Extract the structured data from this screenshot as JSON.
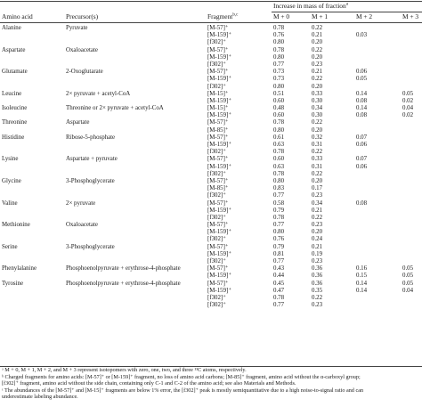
{
  "header": {
    "amino_acid": "Amino acid",
    "precursor": "Precursor(s)",
    "fragment": "Fragment",
    "fragment_sup": "b,c",
    "increase": "Increase in mass of fraction",
    "increase_sup": "a",
    "m0": "M + 0",
    "m1": "M + 1",
    "m2": "M + 2",
    "m3": "M + 3"
  },
  "rows": [
    {
      "aa": "Alanine",
      "pre": "Pyruvate",
      "frag": "[M-57]⁺",
      "m0": "0.78",
      "m1": "0.22",
      "m2": "",
      "m3": ""
    },
    {
      "aa": "",
      "pre": "",
      "frag": "[M-159]⁺",
      "m0": "0.76",
      "m1": "0.21",
      "m2": "0.03",
      "m3": ""
    },
    {
      "aa": "",
      "pre": "",
      "frag": "[f302]⁺",
      "m0": "0.80",
      "m1": "0.20",
      "m2": "",
      "m3": ""
    },
    {
      "aa": "Aspartate",
      "pre": "Oxaloacetate",
      "frag": "[M-57]⁺",
      "m0": "0.78",
      "m1": "0.22",
      "m2": "",
      "m3": ""
    },
    {
      "aa": "",
      "pre": "",
      "frag": "[M-159]⁺",
      "m0": "0.80",
      "m1": "0.20",
      "m2": "",
      "m3": ""
    },
    {
      "aa": "",
      "pre": "",
      "frag": "[f302]⁺",
      "m0": "0.77",
      "m1": "0.23",
      "m2": "",
      "m3": ""
    },
    {
      "aa": "Glutamate",
      "pre": "2-Oxoglutarate",
      "frag": "[M-57]⁺",
      "m0": "0.73",
      "m1": "0.21",
      "m2": "0.06",
      "m3": ""
    },
    {
      "aa": "",
      "pre": "",
      "frag": "[M-159]⁺",
      "m0": "0.73",
      "m1": "0.22",
      "m2": "0.05",
      "m3": ""
    },
    {
      "aa": "",
      "pre": "",
      "frag": "[f302]⁺",
      "m0": "0.80",
      "m1": "0.20",
      "m2": "",
      "m3": ""
    },
    {
      "aa": "Leucine",
      "pre": "2× pyruvate + acetyl-CoA",
      "frag": "[M-15]⁺",
      "m0": "0.51",
      "m1": "0.33",
      "m2": "0.14",
      "m3": "0.05"
    },
    {
      "aa": "",
      "pre": "",
      "frag": "[M-159]⁺",
      "m0": "0.60",
      "m1": "0.30",
      "m2": "0.08",
      "m3": "0.02"
    },
    {
      "aa": "Isoleucine",
      "pre": "Threonine or 2× pyruvate + acetyl-CoA",
      "frag": "[M-15]⁺",
      "m0": "0.48",
      "m1": "0.34",
      "m2": "0.14",
      "m3": "0.04"
    },
    {
      "aa": "",
      "pre": "",
      "frag": "[M-159]⁺",
      "m0": "0.60",
      "m1": "0.30",
      "m2": "0.08",
      "m3": "0.02"
    },
    {
      "aa": "Threonine",
      "pre": "Aspartate",
      "frag": "[M-57]⁺",
      "m0": "0.78",
      "m1": "0.22",
      "m2": "",
      "m3": ""
    },
    {
      "aa": "",
      "pre": "",
      "frag": "[M-85]⁺",
      "m0": "0.80",
      "m1": "0.20",
      "m2": "",
      "m3": ""
    },
    {
      "aa": "Histidine",
      "pre": "Ribose-5-phosphate",
      "frag": "[M-57]⁺",
      "m0": "0.61",
      "m1": "0.32",
      "m2": "0.07",
      "m3": ""
    },
    {
      "aa": "",
      "pre": "",
      "frag": "[M-159]⁺",
      "m0": "0.63",
      "m1": "0.31",
      "m2": "0.06",
      "m3": ""
    },
    {
      "aa": "",
      "pre": "",
      "frag": "[f302]⁺",
      "m0": "0.78",
      "m1": "0.22",
      "m2": "",
      "m3": ""
    },
    {
      "aa": "Lysine",
      "pre": "Aspartate + pyruvate",
      "frag": "[M-57]⁺",
      "m0": "0.60",
      "m1": "0.33",
      "m2": "0.07",
      "m3": ""
    },
    {
      "aa": "",
      "pre": "",
      "frag": "[M-159]⁺",
      "m0": "0.63",
      "m1": "0.31",
      "m2": "0.06",
      "m3": ""
    },
    {
      "aa": "",
      "pre": "",
      "frag": "[f302]⁺",
      "m0": "0.78",
      "m1": "0.22",
      "m2": "",
      "m3": ""
    },
    {
      "aa": "Glycine",
      "pre": "3-Phosphoglycerate",
      "frag": "[M-57]⁺",
      "m0": "0.80",
      "m1": "0.20",
      "m2": "",
      "m3": ""
    },
    {
      "aa": "",
      "pre": "",
      "frag": "[M-85]⁺",
      "m0": "0.83",
      "m1": "0.17",
      "m2": "",
      "m3": ""
    },
    {
      "aa": "",
      "pre": "",
      "frag": "[f302]⁺",
      "m0": "0.77",
      "m1": "0.23",
      "m2": "",
      "m3": ""
    },
    {
      "aa": "Valine",
      "pre": "2× pyruvate",
      "frag": "[M-57]⁺",
      "m0": "0.58",
      "m1": "0.34",
      "m2": "0.08",
      "m3": ""
    },
    {
      "aa": "",
      "pre": "",
      "frag": "[M-159]⁺",
      "m0": "0.79",
      "m1": "0.21",
      "m2": "",
      "m3": ""
    },
    {
      "aa": "",
      "pre": "",
      "frag": "[f302]⁺",
      "m0": "0.78",
      "m1": "0.22",
      "m2": "",
      "m3": ""
    },
    {
      "aa": "Methionine",
      "pre": "Oxaloacetate",
      "frag": "[M-57]⁺",
      "m0": "0.77",
      "m1": "0.23",
      "m2": "",
      "m3": ""
    },
    {
      "aa": "",
      "pre": "",
      "frag": "[M-159]⁺",
      "m0": "0.80",
      "m1": "0.20",
      "m2": "",
      "m3": ""
    },
    {
      "aa": "",
      "pre": "",
      "frag": "[f302]⁺",
      "m0": "0.76",
      "m1": "0.24",
      "m2": "",
      "m3": ""
    },
    {
      "aa": "Serine",
      "pre": "3-Phosphoglycerate",
      "frag": "[M-57]⁺",
      "m0": "0.79",
      "m1": "0.21",
      "m2": "",
      "m3": ""
    },
    {
      "aa": "",
      "pre": "",
      "frag": "[M-159]⁺",
      "m0": "0.81",
      "m1": "0.19",
      "m2": "",
      "m3": ""
    },
    {
      "aa": "",
      "pre": "",
      "frag": "[f302]⁺",
      "m0": "0.77",
      "m1": "0.23",
      "m2": "",
      "m3": ""
    },
    {
      "aa": "Phenylalanine",
      "pre": "Phosphoenolpyruvate + erythrose-4-phosphate",
      "frag": "[M-57]⁺",
      "m0": "0.43",
      "m1": "0.36",
      "m2": "0.16",
      "m3": "0.05"
    },
    {
      "aa": "",
      "pre": "",
      "frag": "[M-159]⁺",
      "m0": "0.44",
      "m1": "0.36",
      "m2": "0.15",
      "m3": "0.05"
    },
    {
      "aa": "Tyrosine",
      "pre": "Phosphoenolpyruvate + erythrose-4-phosphate",
      "frag": "[M-57]⁺",
      "m0": "0.45",
      "m1": "0.36",
      "m2": "0.14",
      "m3": "0.05"
    },
    {
      "aa": "",
      "pre": "",
      "frag": "[M-159]⁺",
      "m0": "0.47",
      "m1": "0.35",
      "m2": "0.14",
      "m3": "0.04"
    },
    {
      "aa": "",
      "pre": "",
      "frag": "[f302]⁺",
      "m0": "0.78",
      "m1": "0.22",
      "m2": "",
      "m3": ""
    },
    {
      "aa": "",
      "pre": "",
      "frag": "[f302]⁺",
      "m0": "0.77",
      "m1": "0.23",
      "m2": "",
      "m3": ""
    }
  ],
  "footnotes": [
    "ᵃ M + 0, M + 1, M + 2, and M + 3 represent isotopomers with zero, one, two, and three ¹³C atoms, respectively.",
    "ᵇ Charged fragments for amino acids: [M-57]⁺ or [M-159]⁺ fragment, no loss of amino acid carbons; [M-85]⁺ fragment, amino acid without the α-carboxyl group;",
    "[f302]⁺ fragment, amino acid without the side chain, containing only C-1 and C-2 of the amino acid; see also Materials and Methods.",
    "ᶜ The abundances of the [M-57]⁺ and [M-15]⁺ fragments are below 1% error, the [f302]⁺ peak is mostly semiquantitative due to a high noise-to-signal ratio and can",
    "underestimate labeling abundance."
  ]
}
